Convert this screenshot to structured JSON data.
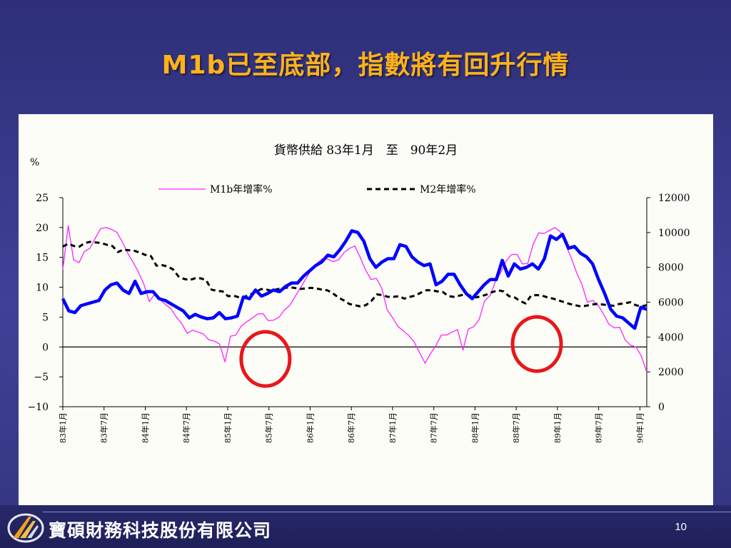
{
  "slide": {
    "title": "M1b已至底部，指數將有回升行情",
    "company": "寶碩財務科技股份有限公司",
    "page_number": "10"
  },
  "colors": {
    "m1b": "#ff22ff",
    "m2": "#000000",
    "index": "#0000ff",
    "circle": "#e8171a",
    "title": "#ffb21a"
  },
  "chart_data": {
    "type": "line",
    "title": "貨幣供給 83年1月　至　90年2月",
    "y_unit_label": "%",
    "left_axis": {
      "ylim": [
        -10,
        25
      ],
      "ticks": [
        25,
        20,
        15,
        10,
        5,
        0,
        -5,
        -10
      ],
      "tick_labels": [
        "25",
        "20",
        "15",
        "10",
        "5",
        "0",
        "−5",
        "−10"
      ]
    },
    "right_axis": {
      "ylim": [
        0,
        12000
      ],
      "ticks": [
        12000,
        10000,
        8000,
        6000,
        4000,
        2000,
        0
      ],
      "tick_labels": [
        "12000",
        "10000",
        "8000",
        "6000",
        "4000",
        "2000",
        "0"
      ]
    },
    "x_labels": [
      "83年1月",
      "83年7月",
      "84年1月",
      "84年7月",
      "85年1月",
      "85年7月",
      "86年1月",
      "86年7月",
      "87年1月",
      "87年7月",
      "88年1月",
      "88年7月",
      "89年1月",
      "89年7月",
      "90年1月"
    ],
    "x_label_months": [
      0,
      6,
      12,
      18,
      24,
      30,
      36,
      42,
      48,
      54,
      60,
      66,
      72,
      78,
      84
    ],
    "x_range": [
      0,
      85
    ],
    "legend": [
      "M1b年增率%",
      "M2年增率%"
    ],
    "legend_placement": "top-center",
    "grid": false,
    "series": [
      {
        "name": "M1b年增率%",
        "axis": "left",
        "values": [
          13,
          20.3,
          14.6,
          14.1,
          16,
          16.5,
          18.2,
          19.8,
          20,
          19.7,
          19.2,
          17.6,
          15.7,
          14.2,
          12.5,
          10.5,
          7.6,
          8.9,
          7.9,
          7.1,
          6.4,
          5,
          3.9,
          2.3,
          2.8,
          2.5,
          2.2,
          1.2,
          1,
          0.5,
          -2.5,
          1.8,
          2,
          3.5,
          4.2,
          4.8,
          5.5,
          5.6,
          4.4,
          4.5,
          5,
          6.2,
          7,
          8.5,
          10,
          11.5,
          13,
          14,
          14.8,
          14.7,
          14.3,
          14.6,
          15.8,
          16.5,
          16.9,
          15,
          12.9,
          11.3,
          11.5,
          9.8,
          6.2,
          4.9,
          3.4,
          2.7,
          1.9,
          0.8,
          -1,
          -2.7,
          -1.1,
          0.2,
          2,
          2,
          2.5,
          2.9,
          -0.5,
          3,
          3.4,
          4.6,
          7.7,
          8.6,
          10.9,
          12.5,
          14.4,
          15.5,
          15.5,
          13.9,
          14,
          17.2,
          19.1,
          19,
          19.5,
          20,
          19.3,
          17.1,
          15,
          12.5,
          10.5,
          7.5,
          7.8,
          7,
          5.5,
          3.8,
          3.2,
          3.3,
          1.2,
          0.3,
          0,
          -1.5,
          -4.2
        ]
      },
      {
        "name": "M2年增率%",
        "axis": "left",
        "values": [
          16.8,
          17.3,
          16.9,
          16.8,
          17.4,
          17.6,
          17.5,
          17.4,
          17.1,
          16.9,
          15.9,
          16.3,
          16.2,
          16.1,
          15.8,
          15.4,
          15.2,
          13.6,
          13.7,
          13.5,
          13,
          11.8,
          11.4,
          11.2,
          11.5,
          11.5,
          11.2,
          9.6,
          9.4,
          9.3,
          8.5,
          8.6,
          8.3,
          8.4,
          8.8,
          9.2,
          9.7,
          9.6,
          9.4,
          9.7,
          9.8,
          10,
          9.9,
          9.7,
          9.8,
          9.9,
          9.8,
          9.6,
          9.5,
          9,
          8.3,
          7.8,
          7.2,
          7,
          6.8,
          7,
          7.7,
          8.8,
          8.7,
          8.4,
          8.4,
          8.5,
          8.1,
          8.4,
          8.6,
          9.1,
          9.5,
          9.5,
          9.3,
          9.2,
          8.5,
          8.4,
          8.6,
          8.8,
          8.6,
          8.3,
          8.5,
          8.8,
          9.2,
          9.5,
          9.3,
          8.5,
          8.3,
          7.7,
          7.3,
          8.6,
          8.7,
          8.6,
          8.3,
          8.1,
          7.8,
          7.5,
          7.2,
          7,
          6.8,
          6.9,
          7.1,
          7.2,
          7.1,
          7,
          6.9,
          7.2,
          7.3,
          7.5,
          7,
          6.8,
          7
        ]
      },
      {
        "name": "",
        "axis": "right",
        "values": [
          6200,
          5500,
          5400,
          5800,
          5900,
          6000,
          6100,
          6700,
          7000,
          7100,
          6700,
          6500,
          7200,
          6500,
          6600,
          6600,
          6200,
          6100,
          5900,
          5700,
          5500,
          5100,
          5300,
          5150,
          5050,
          5100,
          5400,
          5050,
          5100,
          5200,
          6300,
          6200,
          6700,
          6350,
          6500,
          6700,
          6600,
          6900,
          7100,
          7100,
          7500,
          7800,
          8100,
          8300,
          8700,
          8600,
          9000,
          9500,
          10100,
          10000,
          9500,
          8500,
          8000,
          8300,
          8500,
          8500,
          9300,
          9200,
          8600,
          8300,
          8100,
          8200,
          7000,
          7200,
          7600,
          7600,
          7000,
          6500,
          6200,
          6600,
          7000,
          7300,
          7300,
          8400,
          7500,
          8200,
          7900,
          8000,
          8200,
          7900,
          8500,
          9800,
          9600,
          9900,
          9100,
          9200,
          8800,
          8600,
          8200,
          7300,
          6500,
          5600,
          5200,
          5100,
          4800,
          4500,
          5700,
          5600
        ]
      }
    ],
    "annotations": [
      {
        "type": "circle",
        "center_month": 29.5,
        "center_value": -2
      },
      {
        "type": "circle",
        "center_month": 69,
        "center_value": 0.5
      }
    ]
  }
}
